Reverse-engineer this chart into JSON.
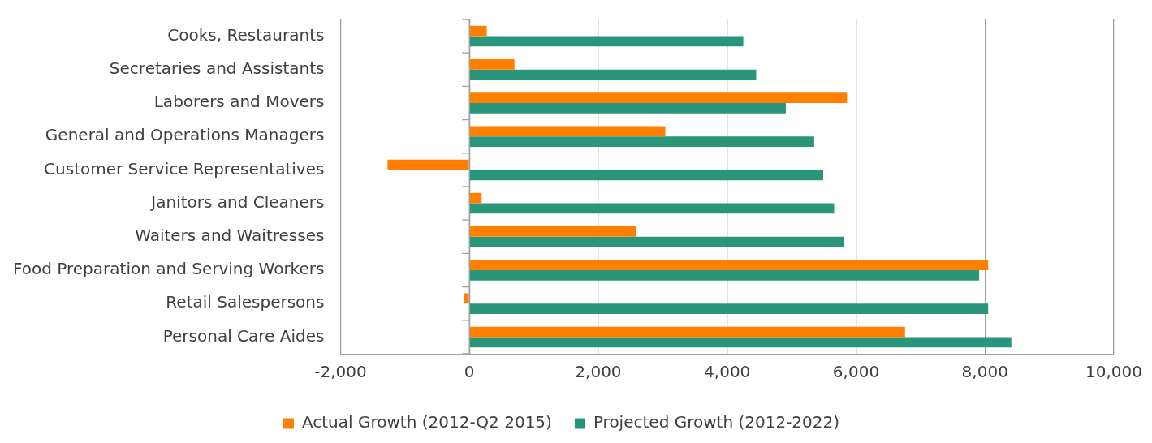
{
  "chart_data": {
    "type": "bar",
    "orientation": "horizontal",
    "categories": [
      "Cooks, Restaurants",
      "Secretaries and Assistants",
      "Laborers and Movers",
      "General and Operations Managers",
      "Customer Service Representatives",
      "Janitors and Cleaners",
      "Waiters and Waitresses",
      "Food Preparation and Serving Workers",
      "Retail Salespersons",
      "Personal Care Aides"
    ],
    "series": [
      {
        "name": "Actual Growth (2012-Q2 2015)",
        "color": "#ff8000",
        "values": [
          270,
          700,
          5860,
          3040,
          -1270,
          190,
          2590,
          8050,
          -90,
          6760
        ]
      },
      {
        "name": "Projected Growth (2012-2022)",
        "color": "#29967c",
        "values": [
          4250,
          4450,
          4910,
          5350,
          5490,
          5660,
          5810,
          7910,
          8050,
          8410
        ]
      }
    ],
    "xlim": [
      -2000,
      10000
    ],
    "xticks": [
      {
        "value": -2000,
        "label": "-2,000"
      },
      0,
      {
        "value": 2000,
        "label": "2,000"
      },
      {
        "value": 4000,
        "label": "4,000"
      },
      {
        "value": 6000,
        "label": "6,000"
      },
      {
        "value": 8000,
        "label": "8,000"
      },
      {
        "value": 10000,
        "label": "10,000"
      }
    ],
    "grid": "x",
    "legend": "bottom"
  }
}
